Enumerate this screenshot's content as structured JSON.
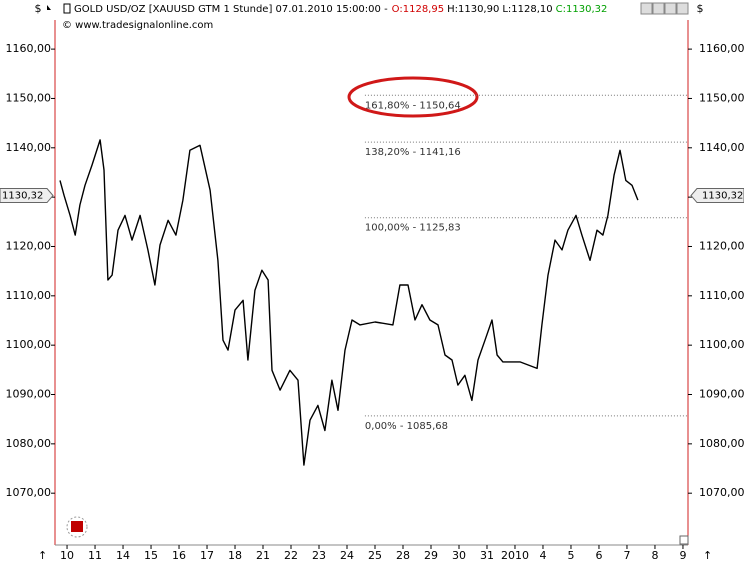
{
  "chart_data": {
    "type": "line",
    "header": {
      "title": "GOLD USD/OZ [XAUUSD GTM  1 Stunde] 07.01.2010 15:00:00 -",
      "open": "O:1128,95",
      "high": "H:1130,90",
      "low": "L:1128,10",
      "close": "C:1130,32",
      "copyright": "© www.tradesignalonline.com"
    },
    "y_unit": "$",
    "series": [
      {
        "color": "#000000",
        "x": [
          -0.25,
          -0.11,
          0.11,
          0.29,
          0.46,
          0.64,
          0.89,
          1.18,
          1.32,
          1.46,
          1.61,
          1.82,
          2.07,
          2.32,
          2.61,
          2.89,
          3.14,
          3.32,
          3.61,
          3.89,
          4.14,
          4.39,
          4.75,
          5.11,
          5.39,
          5.57,
          5.75,
          6.0,
          6.29,
          6.46,
          6.71,
          6.96,
          7.18,
          7.32,
          7.61,
          7.96,
          8.25,
          8.46,
          8.68,
          8.96,
          9.21,
          9.46,
          9.68,
          9.93,
          10.18,
          10.46,
          11.0,
          11.64,
          11.89,
          12.18,
          12.43,
          12.68,
          12.96,
          13.25,
          13.5,
          13.75,
          13.96,
          14.21,
          14.46,
          14.68,
          14.93,
          15.18,
          15.36,
          15.57,
          16.18,
          16.79,
          16.96,
          17.18,
          17.43,
          17.68,
          17.89,
          18.18,
          18.39,
          18.68,
          18.93,
          19.14,
          19.32,
          19.54,
          19.75,
          19.96,
          20.18,
          20.39
        ],
        "values": [
          1133.4,
          1130.4,
          1126.3,
          1122.3,
          1128.4,
          1132.4,
          1136.5,
          1141.6,
          1135.5,
          1113.2,
          1114.2,
          1123.3,
          1126.3,
          1121.3,
          1126.3,
          1119.3,
          1112.2,
          1120.3,
          1125.3,
          1122.3,
          1129.4,
          1139.5,
          1140.5,
          1131.4,
          1117.2,
          1101.0,
          1099.0,
          1107.1,
          1109.1,
          1097.0,
          1111.1,
          1115.2,
          1113.2,
          1094.9,
          1090.9,
          1094.9,
          1092.9,
          1075.7,
          1084.8,
          1087.8,
          1082.7,
          1092.9,
          1086.8,
          1099.0,
          1105.1,
          1104.1,
          1104.7,
          1104.1,
          1112.2,
          1112.2,
          1105.1,
          1108.2,
          1105.1,
          1104.1,
          1098.0,
          1097.0,
          1091.9,
          1093.9,
          1088.8,
          1097.0,
          1101.0,
          1105.1,
          1098.0,
          1096.6,
          1096.6,
          1095.3,
          1104.1,
          1114.2,
          1121.3,
          1119.3,
          1123.3,
          1126.3,
          1122.3,
          1117.2,
          1123.3,
          1122.3,
          1126.3,
          1134.5,
          1139.5,
          1133.4,
          1132.4,
          1129.4
        ]
      }
    ],
    "xlim": [
      -0.43,
      22.18
    ],
    "xticks": [
      {
        "value": 0,
        "label": "10"
      },
      {
        "value": 1,
        "label": "11"
      },
      {
        "value": 2,
        "label": "14"
      },
      {
        "value": 3,
        "label": "15"
      },
      {
        "value": 4,
        "label": "16"
      },
      {
        "value": 5,
        "label": "17"
      },
      {
        "value": 6,
        "label": "18"
      },
      {
        "value": 7,
        "label": "21"
      },
      {
        "value": 8,
        "label": "22"
      },
      {
        "value": 9,
        "label": "23"
      },
      {
        "value": 10,
        "label": "24"
      },
      {
        "value": 11,
        "label": "25"
      },
      {
        "value": 12,
        "label": "28"
      },
      {
        "value": 13,
        "label": "29"
      },
      {
        "value": 14,
        "label": "30"
      },
      {
        "value": 15,
        "label": "31"
      },
      {
        "value": 16,
        "label": "2010"
      },
      {
        "value": 17,
        "label": "4"
      },
      {
        "value": 18,
        "label": "5"
      },
      {
        "value": 19,
        "label": "6"
      },
      {
        "value": 20,
        "label": "7"
      },
      {
        "value": 21,
        "label": "8"
      },
      {
        "value": 22,
        "label": "9"
      }
    ],
    "ylim": [
      1059.5,
      1165.9
    ],
    "yticks": [
      {
        "value": 1070,
        "label": "1070,00"
      },
      {
        "value": 1080,
        "label": "1080,00"
      },
      {
        "value": 1090,
        "label": "1090,00"
      },
      {
        "value": 1100,
        "label": "1100,00"
      },
      {
        "value": 1110,
        "label": "1110,00"
      },
      {
        "value": 1120,
        "label": "1120,00"
      },
      {
        "value": 1130,
        "label": "1130,00"
      },
      {
        "value": 1140,
        "label": "1140,00"
      },
      {
        "value": 1150,
        "label": "1150,00"
      },
      {
        "value": 1160,
        "label": "1160,00"
      }
    ],
    "last_price": {
      "value": 1130.32,
      "label": "1130,32"
    },
    "annotations": [
      {
        "x": 10.64,
        "value": 1150.64,
        "label": "161,80% - 1150,64"
      },
      {
        "x": 10.64,
        "value": 1141.16,
        "label": "138,20% - 1141,16"
      },
      {
        "x": 10.64,
        "value": 1125.83,
        "label": "100,00% - 1125,83"
      },
      {
        "x": 10.64,
        "value": 1085.68,
        "label": "0,00% - 1085,68"
      }
    ]
  }
}
